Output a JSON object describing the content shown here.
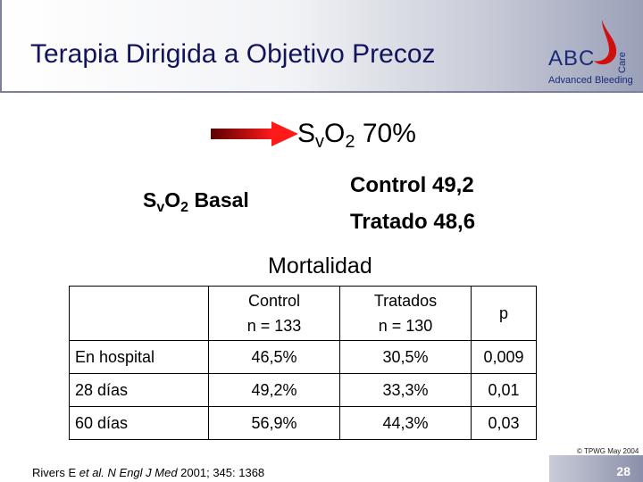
{
  "header": {
    "title": "Terapia Dirigida a Objetivo Precoz",
    "logo_main": "ABC",
    "logo_vertical": "Care",
    "logo_sub": "Advanced Bleeding"
  },
  "target": {
    "prefix": "S",
    "sub_v": "v",
    "o": "O",
    "sub_2": "2",
    "value": "70%"
  },
  "basal": {
    "prefix": "S",
    "sub_v": "v",
    "o": "O",
    "sub_2": "2",
    "label": "Basal"
  },
  "basal_values": {
    "control": "Control 49,2",
    "tratado": "Tratado 48,6"
  },
  "mortality": {
    "title": "Mortalidad",
    "headers": {
      "control_l1": "Control",
      "control_l2": "n = 133",
      "tratados_l1": "Tratados",
      "tratados_l2": "n = 130",
      "p": "p"
    },
    "rows": [
      {
        "label": "En hospital",
        "control": "46,5%",
        "tratados": "30,5%",
        "p": "0,009"
      },
      {
        "label": "28 días",
        "control": "49,2%",
        "tratados": "33,3%",
        "p": "0,01"
      },
      {
        "label": "60 días",
        "control": "56,9%",
        "tratados": "44,3%",
        "p": "0,03"
      }
    ]
  },
  "footer": {
    "ref_authors": "Rivers E ",
    "ref_etal": "et al. N Engl J Med",
    "ref_rest": " 2001; 345: 1368",
    "copyright": "© TPWG May 2004",
    "page": "28"
  },
  "colors": {
    "title": "#13135e",
    "arrow": "#d40000",
    "logo": "#1c2a7a"
  }
}
